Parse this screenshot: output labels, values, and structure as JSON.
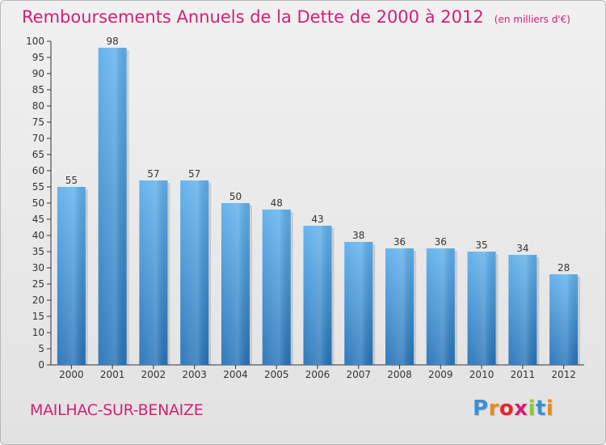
{
  "chart_data": {
    "type": "bar",
    "title": "Remboursements Annuels de la Dette de 2000 à 2012",
    "unit_note": "(en milliers d'€)",
    "categories": [
      "2000",
      "2001",
      "2002",
      "2003",
      "2004",
      "2005",
      "2006",
      "2007",
      "2008",
      "2009",
      "2010",
      "2011",
      "2012"
    ],
    "values": [
      55,
      98,
      57,
      57,
      50,
      48,
      43,
      38,
      36,
      36,
      35,
      34,
      28
    ],
    "ylim": [
      0,
      100
    ],
    "yticks": [
      0,
      5,
      10,
      15,
      20,
      25,
      30,
      35,
      40,
      45,
      50,
      55,
      60,
      65,
      70,
      75,
      80,
      85,
      90,
      95,
      100
    ],
    "grid": false,
    "data_labels": true,
    "bar_color": "#3a8fd6"
  },
  "footer": {
    "commune": "MAILHAC-SUR-BENAIZE",
    "brand": [
      "P",
      "r",
      "o",
      "x",
      "i",
      "t",
      "i"
    ],
    "brand_colors": [
      "#3a8fd6",
      "#e88a1c",
      "#e3262b",
      "#d61f72",
      "#8cc63e",
      "#3a8fd6",
      "#e88a1c"
    ]
  },
  "colors": {
    "accent": "#d61f72"
  }
}
